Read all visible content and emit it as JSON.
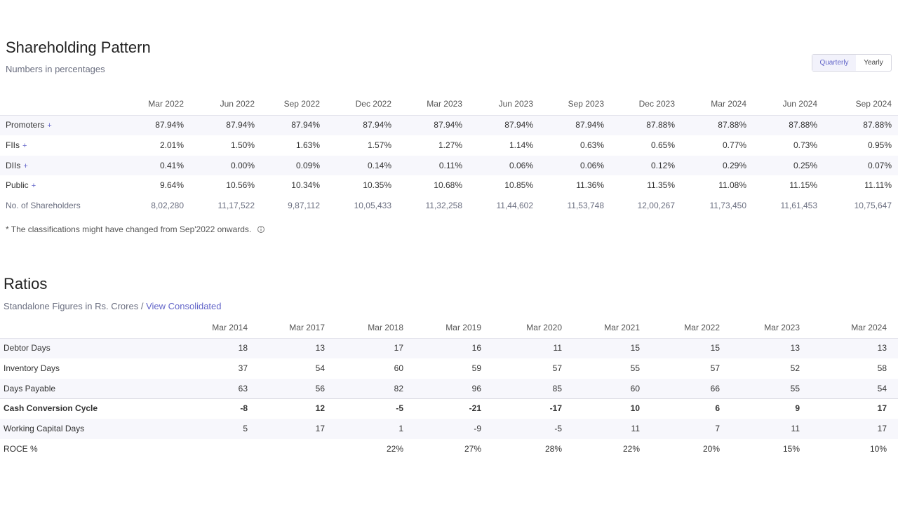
{
  "shareholding": {
    "title": "Shareholding Pattern",
    "subtitle": "Numbers in percentages",
    "tabs": [
      "Quarterly",
      "Yearly"
    ],
    "columns": [
      "Mar 2022",
      "Jun 2022",
      "Sep 2022",
      "Dec 2022",
      "Mar 2023",
      "Jun 2023",
      "Sep 2023",
      "Dec 2023",
      "Mar 2024",
      "Jun 2024",
      "Sep 2024"
    ],
    "rows": [
      {
        "label": "Promoters",
        "toggle": "+",
        "values": [
          "87.94%",
          "87.94%",
          "87.94%",
          "87.94%",
          "87.94%",
          "87.94%",
          "87.94%",
          "87.88%",
          "87.88%",
          "87.88%",
          "87.88%"
        ]
      },
      {
        "label": "FIIs",
        "toggle": "+",
        "values": [
          "2.01%",
          "1.50%",
          "1.63%",
          "1.57%",
          "1.27%",
          "1.14%",
          "0.63%",
          "0.65%",
          "0.77%",
          "0.73%",
          "0.95%"
        ]
      },
      {
        "label": "DIIs",
        "toggle": "+",
        "values": [
          "0.41%",
          "0.00%",
          "0.09%",
          "0.14%",
          "0.11%",
          "0.06%",
          "0.06%",
          "0.12%",
          "0.29%",
          "0.25%",
          "0.07%"
        ]
      },
      {
        "label": "Public",
        "toggle": "+",
        "values": [
          "9.64%",
          "10.56%",
          "10.34%",
          "10.35%",
          "10.68%",
          "10.85%",
          "11.36%",
          "11.35%",
          "11.08%",
          "11.15%",
          "11.11%"
        ]
      },
      {
        "label": "No. of Shareholders",
        "values": [
          "8,02,280",
          "11,17,522",
          "9,87,112",
          "10,05,433",
          "11,32,258",
          "11,44,602",
          "11,53,748",
          "12,00,267",
          "11,73,450",
          "11,61,453",
          "10,75,647"
        ]
      }
    ],
    "note": "* The classifications might have changed from Sep'2022 onwards."
  },
  "ratios": {
    "title": "Ratios",
    "subtitle": "Standalone Figures in Rs. Crores /",
    "link": "View Consolidated",
    "columns": [
      "Mar 2014",
      "Mar 2017",
      "Mar 2018",
      "Mar 2019",
      "Mar 2020",
      "Mar 2021",
      "Mar 2022",
      "Mar 2023",
      "Mar 2024"
    ],
    "rows": [
      {
        "label": "Debtor Days",
        "values": [
          18,
          13,
          17,
          16,
          11,
          15,
          15,
          13,
          13
        ]
      },
      {
        "label": "Inventory Days",
        "values": [
          37,
          54,
          60,
          59,
          57,
          55,
          57,
          52,
          58
        ]
      },
      {
        "label": "Days Payable",
        "values": [
          63,
          56,
          82,
          96,
          85,
          60,
          66,
          55,
          54
        ]
      },
      {
        "label": "Cash Conversion Cycle",
        "emphasis": true,
        "values": [
          -8,
          12,
          -5,
          -21,
          -17,
          10,
          6,
          9,
          17
        ]
      },
      {
        "label": "Working Capital Days",
        "values": [
          5,
          17,
          1,
          -9,
          -5,
          11,
          7,
          11,
          17
        ]
      },
      {
        "label": "ROCE %",
        "values": [
          null,
          null,
          "22%",
          "27%",
          "28%",
          "22%",
          "20%",
          "15%",
          "10%"
        ]
      }
    ]
  }
}
